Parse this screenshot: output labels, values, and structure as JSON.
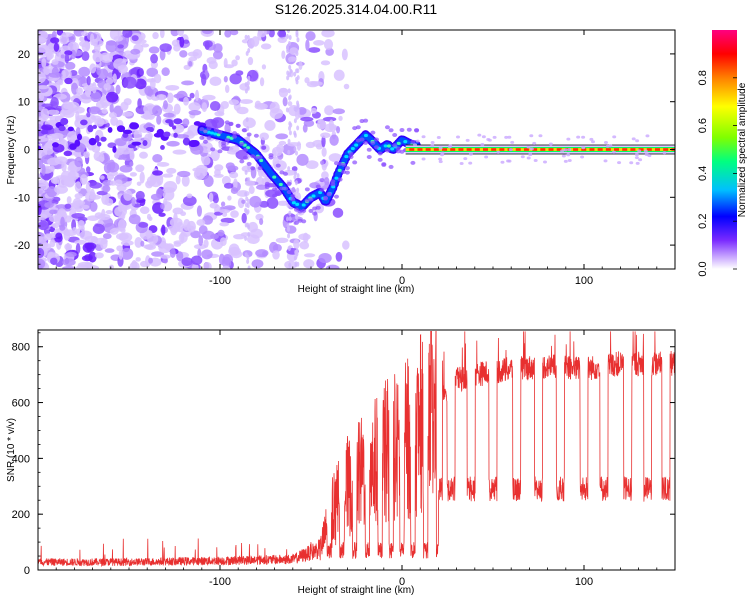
{
  "title": "S126.2025.314.04.00.R11",
  "chart_data": [
    {
      "type": "heatmap",
      "name": "spectrogram",
      "xlabel": "Height of straight line (km)",
      "ylabel": "Frequency (Hz)",
      "xlim": [
        -200,
        150
      ],
      "ylim": [
        -25,
        25
      ],
      "xticks": [
        -100,
        0,
        100
      ],
      "yticks": [
        -20,
        -10,
        0,
        10,
        20
      ],
      "colorbar": {
        "label": "Normalized spectral amplitude",
        "range": [
          0,
          1
        ],
        "ticks": [
          "0.0",
          "0.2",
          "0.4",
          "0.6",
          "0.8"
        ],
        "tick_values": [
          0.0,
          0.2,
          0.4,
          0.6,
          0.8
        ],
        "colors": [
          "#ffffff",
          "#9b6bff",
          "#5b00ff",
          "#0000ff",
          "#00c8ff",
          "#00ff7a",
          "#7aff00",
          "#ffff00",
          "#ff8c00",
          "#ff0000",
          "#ff0080"
        ]
      },
      "trace": {
        "x": [
          -110,
          -100,
          -90,
          -80,
          -72,
          -65,
          -60,
          -55,
          -50,
          -45,
          -42,
          -38,
          -35,
          -30,
          -25,
          -20,
          -17,
          -12,
          -8,
          -5,
          0,
          5,
          20,
          50,
          80,
          100,
          130,
          150
        ],
        "y": [
          4,
          3,
          2,
          -1,
          -5,
          -8,
          -11,
          -12,
          -10,
          -9,
          -11,
          -8,
          -5,
          -1,
          1,
          3,
          2,
          0,
          1,
          0,
          2,
          1,
          0,
          0,
          0,
          0,
          0,
          0
        ]
      }
    },
    {
      "type": "line",
      "name": "snr",
      "xlabel": "Height of straight line (km)",
      "ylabel": "SNR (10 * v/v)",
      "xlim": [
        -200,
        150
      ],
      "ylim": [
        0,
        860
      ],
      "xticks": [
        -100,
        0,
        100
      ],
      "yticks": [
        0,
        200,
        400,
        600,
        800
      ],
      "color": "#e00000",
      "envelope": {
        "x": [
          -200,
          -150,
          -100,
          -60,
          -45,
          -40,
          -30,
          -20,
          -10,
          0,
          10,
          20,
          30,
          40,
          60,
          80,
          100,
          120,
          150
        ],
        "y": [
          30,
          30,
          35,
          40,
          80,
          200,
          320,
          400,
          450,
          480,
          560,
          620,
          680,
          700,
          720,
          730,
          720,
          740,
          740
        ]
      },
      "dropouts": [
        -40,
        -33,
        -26,
        -19,
        -12,
        -6,
        0,
        6,
        13,
        20,
        27,
        38,
        50,
        63,
        75,
        87,
        100,
        111,
        124,
        135,
        145
      ],
      "dropout_level": 290
    }
  ]
}
